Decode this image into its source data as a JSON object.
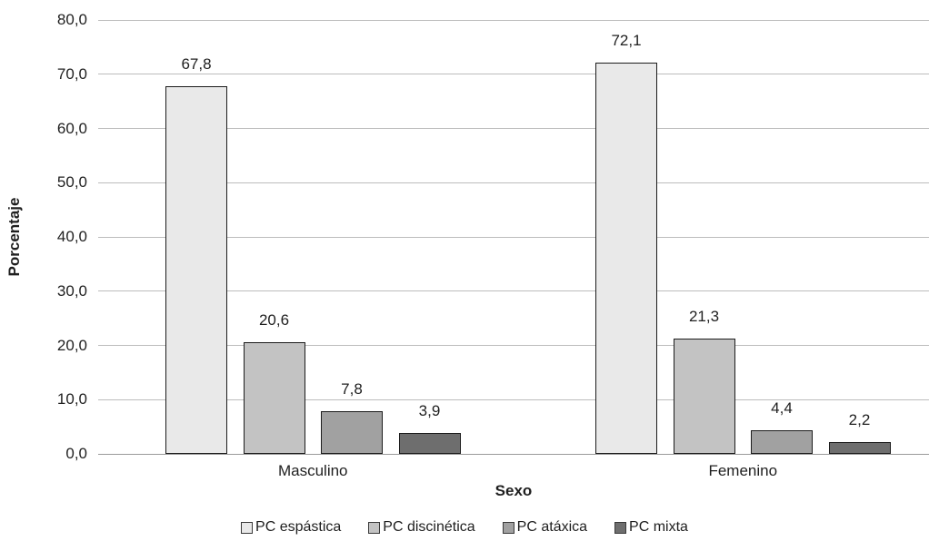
{
  "chart_data": {
    "type": "bar",
    "title": "",
    "xlabel": "Sexo",
    "ylabel": "Porcentaje",
    "categories": [
      "Masculino",
      "Femenino"
    ],
    "series": [
      {
        "name": "PC espástica",
        "values": [
          67.8,
          72.1
        ],
        "labels": [
          "67,8",
          "72,1"
        ],
        "color": "#e9e9e9"
      },
      {
        "name": "PC discinética",
        "values": [
          20.6,
          21.3
        ],
        "labels": [
          "20,6",
          "21,3"
        ],
        "color": "#c3c3c3"
      },
      {
        "name": "PC atáxica",
        "values": [
          7.8,
          4.4
        ],
        "labels": [
          "7,8",
          "4,4"
        ],
        "color": "#a1a1a1"
      },
      {
        "name": "PC mixta",
        "values": [
          3.9,
          2.2
        ],
        "labels": [
          "3,9",
          "2,2"
        ],
        "color": "#6e6e6e"
      }
    ],
    "ylim": [
      0,
      80
    ],
    "ytick_step": 10,
    "ytick_labels": [
      "0,0",
      "10,0",
      "20,0",
      "30,0",
      "40,0",
      "50,0",
      "60,0",
      "70,0",
      "80,0"
    ],
    "grid": "horizontal",
    "legend_position": "bottom"
  },
  "colors": {
    "gridline": "#bcbcbc",
    "axis_line": "#9a9a9a",
    "bar_border": "#1c1c1c",
    "text": "#1f1f1f",
    "background": "#ffffff"
  }
}
